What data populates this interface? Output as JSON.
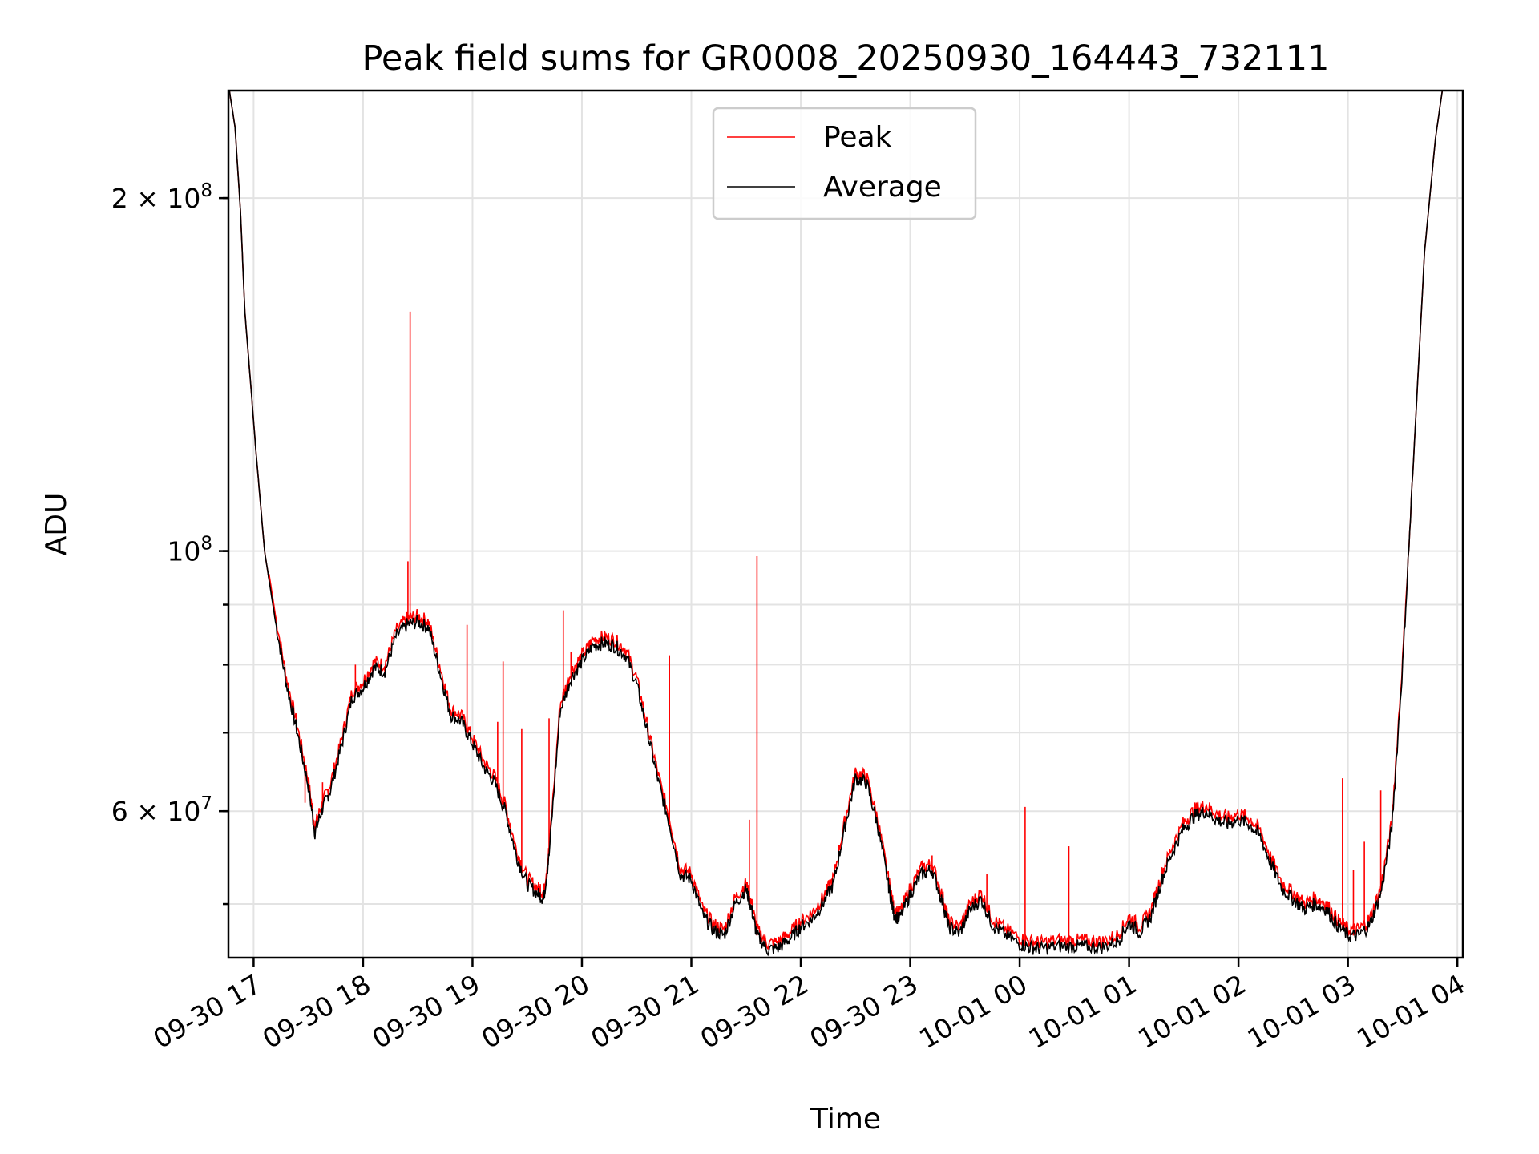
{
  "chart_data": {
    "type": "line",
    "title": "Peak field sums for GR0008_20250930_164443_732111",
    "xlabel": "Time",
    "ylabel": "ADU",
    "yscale": "log",
    "ylim": [
      45000000,
      247000000
    ],
    "xlim_hours": [
      -0.23,
      11.05
    ],
    "x_unit": "hours since 09-30 17:00",
    "grid": true,
    "legend_position": "upper center",
    "x_ticks": [
      {
        "hour": 0,
        "label": "09-30 17"
      },
      {
        "hour": 1,
        "label": "09-30 18"
      },
      {
        "hour": 2,
        "label": "09-30 19"
      },
      {
        "hour": 3,
        "label": "09-30 20"
      },
      {
        "hour": 4,
        "label": "09-30 21"
      },
      {
        "hour": 5,
        "label": "09-30 22"
      },
      {
        "hour": 6,
        "label": "09-30 23"
      },
      {
        "hour": 7,
        "label": "10-01 00"
      },
      {
        "hour": 8,
        "label": "10-01 01"
      },
      {
        "hour": 9,
        "label": "10-01 02"
      },
      {
        "hour": 10,
        "label": "10-01 03"
      },
      {
        "hour": 11,
        "label": "10-01 04"
      }
    ],
    "y_major_ticks": [
      {
        "value": 200000000,
        "mantissa": "2",
        "exponent": "8"
      },
      {
        "value": 100000000,
        "mantissa": "",
        "exponent": "8"
      },
      {
        "value": 60000000,
        "mantissa": "6",
        "exponent": "7"
      }
    ],
    "y_gridlines": [
      50000000,
      60000000,
      70000000,
      80000000,
      90000000,
      100000000,
      200000000
    ],
    "series": [
      {
        "name": "Average",
        "color": "#000000",
        "points": [
          [
            -0.23,
            250000000
          ],
          [
            -0.17,
            230000000
          ],
          [
            -0.12,
            195000000
          ],
          [
            -0.08,
            160000000
          ],
          [
            -0.03,
            140000000
          ],
          [
            0.02,
            122000000
          ],
          [
            0.1,
            100000000
          ],
          [
            0.2,
            87000000
          ],
          [
            0.3,
            77000000
          ],
          [
            0.4,
            70000000
          ],
          [
            0.5,
            63000000
          ],
          [
            0.56,
            57500000
          ],
          [
            0.62,
            60000000
          ],
          [
            0.7,
            62500000
          ],
          [
            0.8,
            68000000
          ],
          [
            0.9,
            75000000
          ],
          [
            1.0,
            76500000
          ],
          [
            1.1,
            79500000
          ],
          [
            1.2,
            79000000
          ],
          [
            1.3,
            84500000
          ],
          [
            1.4,
            86500000
          ],
          [
            1.5,
            87000000
          ],
          [
            1.6,
            86000000
          ],
          [
            1.7,
            79000000
          ],
          [
            1.8,
            72500000
          ],
          [
            1.9,
            71500000
          ],
          [
            2.0,
            68500000
          ],
          [
            2.1,
            65500000
          ],
          [
            2.2,
            63500000
          ],
          [
            2.3,
            60000000
          ],
          [
            2.4,
            55000000
          ],
          [
            2.5,
            52000000
          ],
          [
            2.6,
            51000000
          ],
          [
            2.65,
            50500000
          ],
          [
            2.7,
            55000000
          ],
          [
            2.8,
            73000000
          ],
          [
            2.9,
            78000000
          ],
          [
            3.0,
            80500000
          ],
          [
            3.1,
            83000000
          ],
          [
            3.2,
            83500000
          ],
          [
            3.3,
            83000000
          ],
          [
            3.4,
            81500000
          ],
          [
            3.5,
            77000000
          ],
          [
            3.6,
            70000000
          ],
          [
            3.7,
            63500000
          ],
          [
            3.8,
            58500000
          ],
          [
            3.9,
            53000000
          ],
          [
            4.0,
            52500000
          ],
          [
            4.1,
            49000000
          ],
          [
            4.2,
            47500000
          ],
          [
            4.3,
            47000000
          ],
          [
            4.4,
            50000000
          ],
          [
            4.5,
            51500000
          ],
          [
            4.55,
            49500000
          ],
          [
            4.6,
            47000000
          ],
          [
            4.7,
            45700000
          ],
          [
            4.8,
            45900000
          ],
          [
            4.9,
            46700000
          ],
          [
            5.0,
            47800000
          ],
          [
            5.1,
            48500000
          ],
          [
            5.2,
            50000000
          ],
          [
            5.3,
            52000000
          ],
          [
            5.4,
            58000000
          ],
          [
            5.5,
            64000000
          ],
          [
            5.6,
            63500000
          ],
          [
            5.7,
            58500000
          ],
          [
            5.8,
            52000000
          ],
          [
            5.85,
            49000000
          ],
          [
            5.9,
            48500000
          ],
          [
            6.0,
            51000000
          ],
          [
            6.1,
            53000000
          ],
          [
            6.2,
            53500000
          ],
          [
            6.3,
            50000000
          ],
          [
            6.35,
            47800000
          ],
          [
            6.45,
            47200000
          ],
          [
            6.55,
            49500000
          ],
          [
            6.65,
            50500000
          ],
          [
            6.75,
            48000000
          ],
          [
            6.85,
            47200000
          ],
          [
            7.0,
            46200000
          ],
          [
            7.1,
            45900000
          ],
          [
            7.2,
            45800000
          ],
          [
            7.35,
            46000000
          ],
          [
            7.5,
            46000000
          ],
          [
            7.6,
            46000000
          ],
          [
            7.75,
            45900000
          ],
          [
            7.9,
            46500000
          ],
          [
            8.0,
            48200000
          ],
          [
            8.1,
            47300000
          ],
          [
            8.2,
            48800000
          ],
          [
            8.3,
            52500000
          ],
          [
            8.4,
            55500000
          ],
          [
            8.5,
            58000000
          ],
          [
            8.6,
            59500000
          ],
          [
            8.7,
            60000000
          ],
          [
            8.8,
            59000000
          ],
          [
            8.9,
            58500000
          ],
          [
            9.0,
            59000000
          ],
          [
            9.1,
            58500000
          ],
          [
            9.2,
            57000000
          ],
          [
            9.3,
            54000000
          ],
          [
            9.4,
            51500000
          ],
          [
            9.5,
            50500000
          ],
          [
            9.6,
            49500000
          ],
          [
            9.7,
            50000000
          ],
          [
            9.8,
            49500000
          ],
          [
            9.9,
            48000000
          ],
          [
            10.0,
            47000000
          ],
          [
            10.1,
            47000000
          ],
          [
            10.2,
            48000000
          ],
          [
            10.3,
            51000000
          ],
          [
            10.4,
            58000000
          ],
          [
            10.5,
            80000000
          ],
          [
            10.6,
            120000000
          ],
          [
            10.7,
            180000000
          ],
          [
            10.8,
            225000000
          ],
          [
            10.87,
            250000000
          ],
          [
            11.05,
            250000000
          ]
        ]
      },
      {
        "name": "Peak",
        "color": "#ff0000",
        "base_offset_ratio": 1.012,
        "spikes": [
          [
            1.43,
            160000000
          ],
          [
            1.41,
            98000000
          ],
          [
            0.93,
            80000000
          ],
          [
            0.63,
            63500000
          ],
          [
            1.95,
            86500000
          ],
          [
            2.23,
            71500000
          ],
          [
            2.28,
            80500000
          ],
          [
            2.45,
            70500000
          ],
          [
            2.7,
            72000000
          ],
          [
            2.62,
            52000000
          ],
          [
            2.83,
            89000000
          ],
          [
            2.9,
            82000000
          ],
          [
            3.07,
            84000000
          ],
          [
            3.8,
            81500000
          ],
          [
            4.53,
            59000000
          ],
          [
            4.6,
            99000000
          ],
          [
            6.2,
            55000000
          ],
          [
            6.7,
            53000000
          ],
          [
            7.05,
            60500000
          ],
          [
            7.45,
            56000000
          ],
          [
            7.7,
            46800000
          ],
          [
            9.95,
            64000000
          ],
          [
            10.05,
            53500000
          ],
          [
            10.15,
            56500000
          ],
          [
            10.3,
            62500000
          ],
          [
            0.47,
            61000000
          ],
          [
            3.6,
            71000000
          ],
          [
            6.47,
            48500000
          ]
        ]
      }
    ]
  },
  "legend": {
    "items": [
      {
        "label": "Peak",
        "color": "#ff0000"
      },
      {
        "label": "Average",
        "color": "#000000"
      }
    ]
  }
}
